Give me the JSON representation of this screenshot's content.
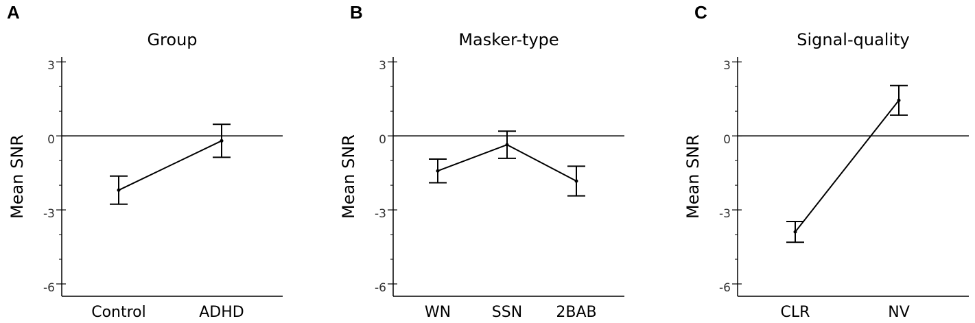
{
  "chart_data": [
    {
      "type": "line",
      "panel": "A",
      "title": "Group",
      "ylabel": "Mean SNR",
      "categories": [
        "Control",
        "ADHD"
      ],
      "values": [
        -2.2,
        -0.2
      ],
      "errors": [
        0.57,
        0.67
      ],
      "color": "#000000",
      "ylim": [
        -6.5,
        3.2
      ],
      "yticks": [
        3,
        0,
        -3,
        -6
      ],
      "yminorticks": [
        2,
        1,
        -1,
        -2,
        -4,
        -5
      ],
      "hline": 0
    },
    {
      "type": "line",
      "panel": "B",
      "title": "Masker-type",
      "ylabel": "Mean SNR",
      "categories": [
        "WN",
        "SSN",
        "2BAB"
      ],
      "values": [
        -1.42,
        -0.36,
        -1.83
      ],
      "errors": [
        0.48,
        0.55,
        0.6
      ],
      "color": "#000000",
      "ylim": [
        -6.5,
        3.2
      ],
      "yticks": [
        3,
        0,
        -3,
        -6
      ],
      "yminorticks": [
        2,
        1,
        -1,
        -2,
        -4,
        -5
      ],
      "hline": 0
    },
    {
      "type": "line",
      "panel": "C",
      "title": "Signal-quality",
      "ylabel": "Mean SNR",
      "categories": [
        "CLR",
        "NV"
      ],
      "values": [
        -3.89,
        1.44
      ],
      "errors": [
        0.42,
        0.6
      ],
      "color": "#000000",
      "ylim": [
        -6.5,
        3.2
      ],
      "yticks": [
        3,
        0,
        -3,
        -6
      ],
      "yminorticks": [
        2,
        1,
        -1,
        -2,
        -4,
        -5
      ],
      "hline": 0
    }
  ]
}
